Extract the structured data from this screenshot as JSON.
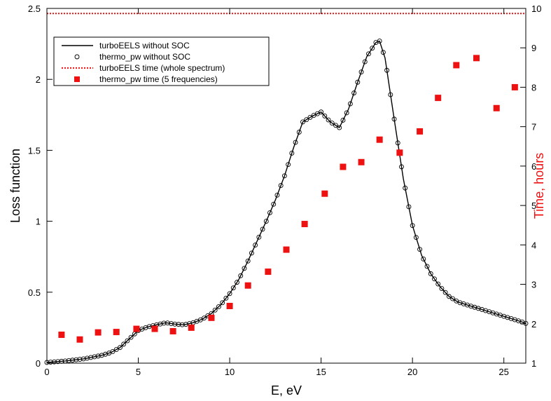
{
  "chart_data": {
    "type": "line",
    "xlabel": "E, eV",
    "ylabel": "Loss function",
    "y2label": "Time, hours",
    "xlim": [
      0,
      26.2
    ],
    "ylim": [
      0,
      2.5
    ],
    "y2lim": [
      1,
      10
    ],
    "xticks": [
      "0",
      "5",
      "10",
      "15",
      "20",
      "25"
    ],
    "yticks": [
      "0",
      "0.5",
      "1",
      "1.5",
      "2",
      "2.5"
    ],
    "y2ticks": [
      "1",
      "2",
      "3",
      "4",
      "5",
      "6",
      "7",
      "8",
      "9",
      "10"
    ],
    "grid": false,
    "legend_position": "top-left",
    "colors": {
      "axis_right": "#ee1111",
      "time_line": "#ee1111",
      "time_points": "#ee1111",
      "loss": "#000000"
    },
    "series": [
      {
        "name": "turboEELS without SOC",
        "axis": "left",
        "style": "line",
        "x": [
          0,
          1,
          2,
          3,
          3.5,
          4,
          4.5,
          5,
          5.5,
          6,
          6.5,
          7,
          7.5,
          8,
          8.5,
          9,
          9.5,
          10,
          10.5,
          11,
          11.5,
          12,
          12.5,
          13,
          13.5,
          14,
          14.5,
          15,
          15.5,
          16,
          16.5,
          17,
          17.5,
          18,
          18.2,
          18.5,
          19,
          19.5,
          20,
          20.5,
          21,
          21.5,
          22,
          22.5,
          23,
          23.5,
          24,
          24.5,
          25,
          25.5,
          26,
          26.2
        ],
        "y": [
          0.005,
          0.015,
          0.03,
          0.055,
          0.075,
          0.11,
          0.17,
          0.23,
          0.255,
          0.27,
          0.285,
          0.275,
          0.27,
          0.285,
          0.31,
          0.35,
          0.41,
          0.49,
          0.59,
          0.72,
          0.86,
          1.0,
          1.15,
          1.32,
          1.52,
          1.7,
          1.74,
          1.77,
          1.7,
          1.66,
          1.79,
          1.98,
          2.16,
          2.26,
          2.27,
          2.15,
          1.72,
          1.3,
          0.97,
          0.76,
          0.63,
          0.54,
          0.47,
          0.43,
          0.41,
          0.39,
          0.37,
          0.35,
          0.33,
          0.31,
          0.29,
          0.28
        ]
      },
      {
        "name": "thermo_pw without SOC",
        "axis": "left",
        "style": "open-circles",
        "sample_step": 0.2
      },
      {
        "name": "turboEELS time (whole spectrum)",
        "axis": "right",
        "style": "dotted-line",
        "x": [
          0,
          26.2
        ],
        "y": [
          9.87,
          9.87
        ]
      },
      {
        "name": "thermo_pw time (5 frequencies)",
        "axis": "right",
        "style": "squares",
        "x": [
          0.8,
          1.8,
          2.8,
          3.8,
          4.9,
          5.9,
          6.9,
          7.9,
          9.0,
          10.0,
          11.0,
          12.1,
          13.1,
          14.1,
          15.2,
          16.2,
          17.2,
          18.2,
          19.3,
          20.4,
          21.4,
          22.4,
          23.5,
          24.6,
          25.6
        ],
        "y": [
          1.72,
          1.6,
          1.78,
          1.79,
          1.87,
          1.87,
          1.81,
          1.9,
          2.15,
          2.45,
          2.97,
          3.32,
          3.88,
          4.53,
          5.3,
          5.98,
          6.1,
          6.67,
          6.34,
          6.88,
          7.73,
          8.56,
          8.74,
          7.47,
          8.0
        ]
      }
    ]
  }
}
